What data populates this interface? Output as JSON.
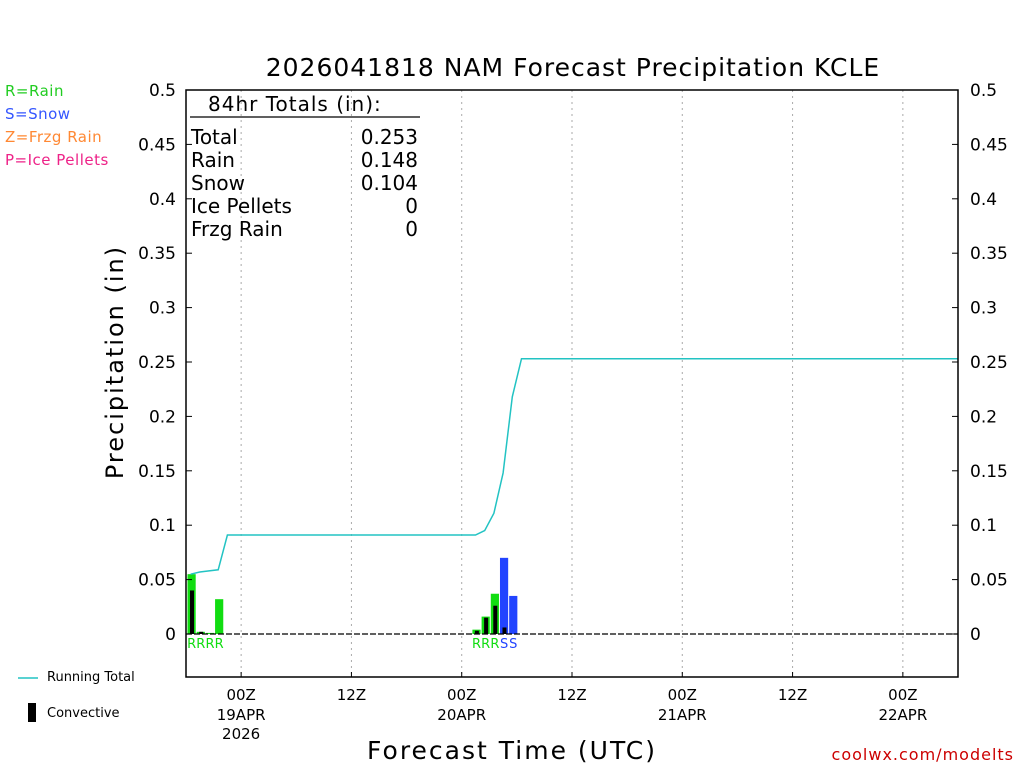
{
  "chart_data": {
    "type": "bar",
    "title": "2026041818 NAM Forecast Precipitation KCLE",
    "xlabel": "Forecast Time (UTC)",
    "ylabel": "Precipitation (in)",
    "ylim": [
      0,
      0.5
    ],
    "y_ticks": [
      "0",
      "0.05",
      "0.1",
      "0.15",
      "0.2",
      "0.25",
      "0.3",
      "0.35",
      "0.4",
      "0.45",
      "0.5"
    ],
    "x_range_hours": [
      0,
      84
    ],
    "grid": true,
    "x_ticks": [
      {
        "hour": 6,
        "label": "00Z",
        "sub1": "19APR",
        "sub2": "2026"
      },
      {
        "hour": 18,
        "label": "12Z",
        "sub1": "",
        "sub2": ""
      },
      {
        "hour": 30,
        "label": "00Z",
        "sub1": "20APR",
        "sub2": ""
      },
      {
        "hour": 42,
        "label": "12Z",
        "sub1": "",
        "sub2": ""
      },
      {
        "hour": 54,
        "label": "00Z",
        "sub1": "21APR",
        "sub2": ""
      },
      {
        "hour": 66,
        "label": "12Z",
        "sub1": "",
        "sub2": ""
      },
      {
        "hour": 78,
        "label": "00Z",
        "sub1": "22APR",
        "sub2": ""
      }
    ],
    "precip_type_legend": [
      {
        "text": "R=Rain",
        "color": "#22cc22"
      },
      {
        "text": "S=Snow",
        "color": "#3355ff"
      },
      {
        "text": "Z=Frzg Rain",
        "color": "#ff8833"
      },
      {
        "text": "P=Ice Pellets",
        "color": "#ee2288"
      }
    ],
    "totals": {
      "heading": "84hr Totals (in):",
      "rows": [
        {
          "label": "Total",
          "value": "0.253"
        },
        {
          "label": "Rain",
          "value": "0.148"
        },
        {
          "label": "Snow",
          "value": "0.104"
        },
        {
          "label": "Ice Pellets",
          "value": "0"
        },
        {
          "label": "Frzg Rain",
          "value": "0"
        }
      ]
    },
    "bars": [
      {
        "hour": 1,
        "type": "R",
        "value": 0.055,
        "convective": 0.04
      },
      {
        "hour": 2,
        "type": "R",
        "value": 0.002,
        "convective": 0.002
      },
      {
        "hour": 3,
        "type": "R",
        "value": 0.001,
        "convective": 0.0
      },
      {
        "hour": 4,
        "type": "R",
        "value": 0.032,
        "convective": 0.0
      },
      {
        "hour": 32,
        "type": "R",
        "value": 0.004,
        "convective": 0.003
      },
      {
        "hour": 33,
        "type": "R",
        "value": 0.016,
        "convective": 0.015
      },
      {
        "hour": 34,
        "type": "R",
        "value": 0.037,
        "convective": 0.026
      },
      {
        "hour": 35,
        "type": "S",
        "value": 0.07,
        "convective": 0.006
      },
      {
        "hour": 36,
        "type": "S",
        "value": 0.035,
        "convective": 0.0
      }
    ],
    "running_total": {
      "name": "Running Total",
      "color": "#22c3c3",
      "x": [
        0.5,
        1.5,
        2.5,
        3.5,
        4.5,
        31,
        31.5,
        32.5,
        33.5,
        34.5,
        35.5,
        36.5,
        84
      ],
      "y": [
        0.055,
        0.057,
        0.058,
        0.059,
        0.091,
        0.091,
        0.091,
        0.095,
        0.111,
        0.148,
        0.218,
        0.253,
        0.253
      ]
    },
    "series_legend": [
      {
        "name": "Running Total",
        "color": "#22c3c3",
        "symbol": "line"
      },
      {
        "name": "Convective",
        "color": "#000000",
        "symbol": "bar"
      }
    ],
    "colors": {
      "rain": "#11dd11",
      "snow": "#2244ff",
      "convective": "#000000",
      "running_total": "#22c3c3",
      "grid": "#aaaaaa"
    }
  },
  "footer": {
    "credit": "coolwx.com/modelts"
  }
}
